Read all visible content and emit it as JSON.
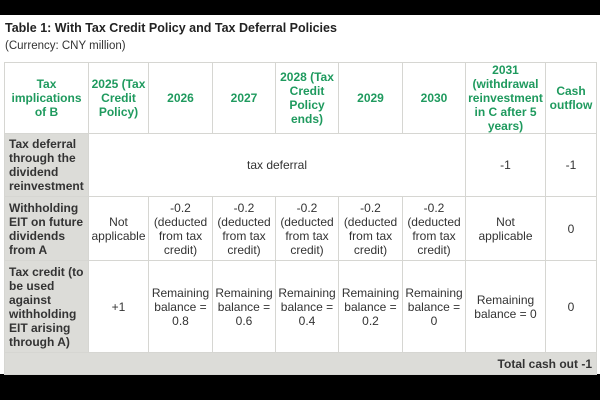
{
  "title": "Table 1: With Tax Credit Policy and Tax Deferral Policies",
  "subtitle": "(Currency: CNY million)",
  "colors": {
    "header_text": "#1f9a5e",
    "label_bg": "#dcdcd8"
  },
  "headers": [
    "Tax implications of B",
    "2025 (Tax Credit Policy)",
    "2026",
    "2027",
    "2028 (Tax Credit Policy ends)",
    "2029",
    "2030",
    "2031 (withdrawal reinvestment in C after 5 years)",
    "Cash outflow"
  ],
  "rows": [
    {
      "label": "Tax deferral through the dividend reinvestment",
      "merged": "tax deferral",
      "c2031": "-1",
      "cash": "-1"
    },
    {
      "label": "Withholding EIT on future dividends from A",
      "cells": [
        "Not applicable",
        "-0.2 (deducted from tax credit)",
        "-0.2 (deducted from tax credit)",
        "-0.2 (deducted from tax credit)",
        "-0.2 (deducted from tax credit)",
        "-0.2 (deducted from tax credit)",
        "Not applicable",
        "0"
      ]
    },
    {
      "label": "Tax credit (to be used against withholding EIT arising through A)",
      "cells": [
        "+1",
        "Remaining balance = 0.8",
        "Remaining balance = 0.6",
        "Remaining balance = 0.4",
        "Remaining balance = 0.2",
        "Remaining balance = 0",
        "Remaining balance = 0",
        "0"
      ]
    }
  ],
  "total": "Total cash out -1"
}
